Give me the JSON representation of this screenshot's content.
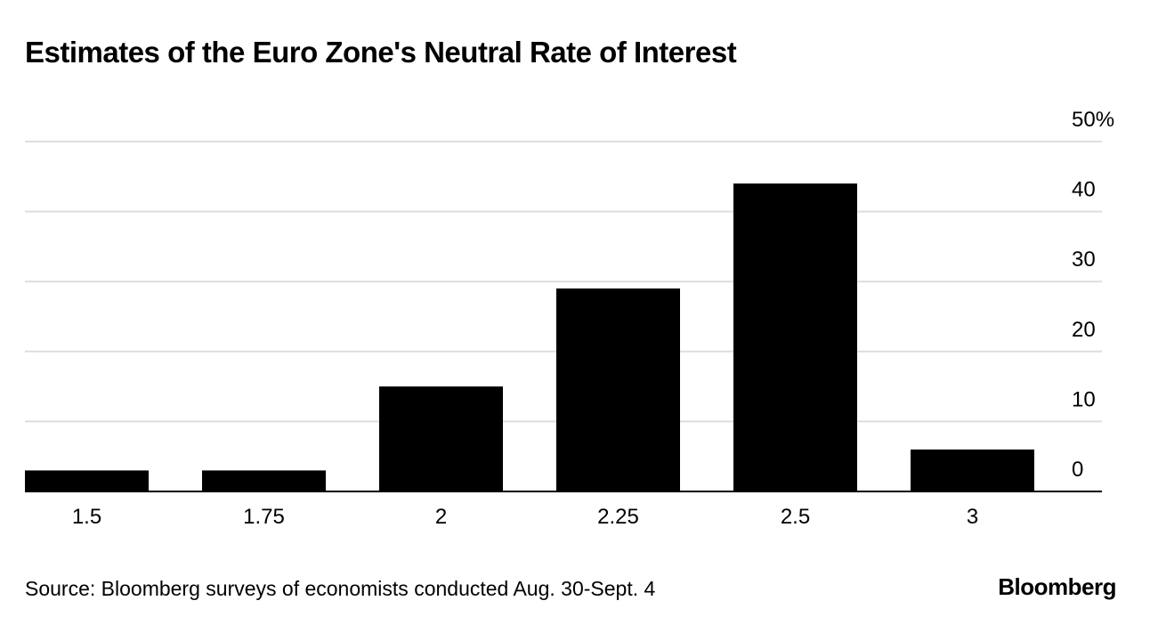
{
  "chart_data": {
    "type": "bar",
    "title": "Estimates of the Euro Zone's Neutral Rate of Interest",
    "categories": [
      "1.5",
      "1.75",
      "2",
      "2.25",
      "2.5",
      "3"
    ],
    "values": [
      3,
      3,
      15,
      29,
      44,
      6
    ],
    "ylim": [
      0,
      50
    ],
    "yticks": [
      0,
      10,
      20,
      30,
      40,
      50
    ],
    "ytick_labels": [
      "0",
      "10",
      "20",
      "30",
      "40",
      "50%"
    ],
    "xlabel": "",
    "ylabel": "",
    "grid": true,
    "bar_color": "#000000",
    "grid_color": "#dddddd"
  },
  "footer": {
    "source": "Source: Bloomberg surveys of economists conducted Aug. 30-Sept. 4",
    "brand": "Bloomberg"
  }
}
